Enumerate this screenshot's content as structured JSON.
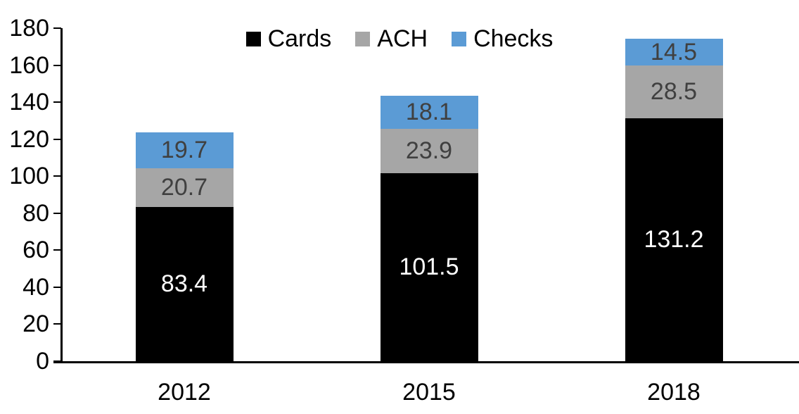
{
  "chart_data": {
    "type": "bar",
    "stacked": true,
    "title": "",
    "xlabel": "",
    "ylabel": "",
    "categories": [
      "2012",
      "2015",
      "2018"
    ],
    "series": [
      {
        "name": "Cards",
        "color": "#000000",
        "label_color": "#ffffff",
        "values": [
          83.4,
          101.5,
          131.2
        ]
      },
      {
        "name": "ACH",
        "color": "#a6a6a6",
        "label_color": "#404040",
        "values": [
          20.7,
          23.9,
          28.5
        ]
      },
      {
        "name": "Checks",
        "color": "#5b9bd5",
        "label_color": "#404040",
        "values": [
          19.7,
          18.1,
          14.5
        ]
      }
    ],
    "ylim": [
      0,
      180
    ],
    "yticks": [
      0,
      20,
      40,
      60,
      80,
      100,
      120,
      140,
      160,
      180
    ],
    "grid": false,
    "legend_position": "top-center",
    "axis_color": "#000000",
    "background_color": "#ffffff",
    "data_labels_shown": true
  }
}
